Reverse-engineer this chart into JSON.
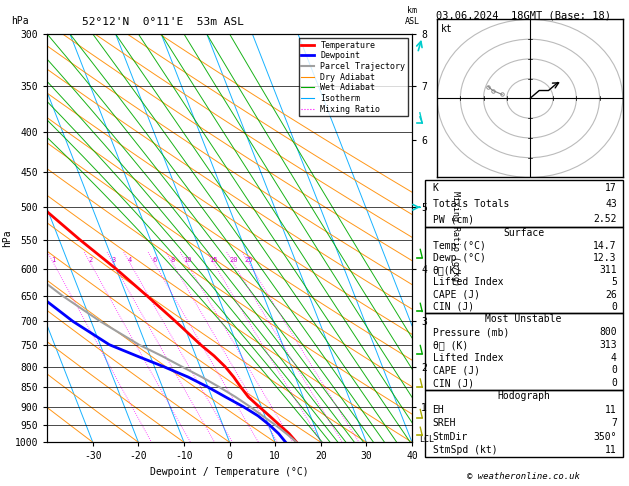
{
  "title_left": "52°12'N  0°11'E  53m ASL",
  "title_right": "03.06.2024  18GMT (Base: 18)",
  "xlabel": "Dewpoint / Temperature (°C)",
  "pressure_ticks": [
    300,
    350,
    400,
    450,
    500,
    550,
    600,
    650,
    700,
    750,
    800,
    850,
    900,
    950,
    1000
  ],
  "x_ticks": [
    -30,
    -20,
    -10,
    0,
    10,
    20,
    30,
    40
  ],
  "x_min": -40,
  "x_max": 40,
  "km_ticks": [
    8,
    7,
    6,
    5,
    4,
    3,
    2,
    1
  ],
  "km_pressures": [
    300,
    350,
    410,
    500,
    600,
    700,
    800,
    900
  ],
  "lcl_pressure": 993,
  "mixing_ratio_values": [
    1,
    2,
    3,
    4,
    6,
    8,
    10,
    15,
    20,
    25
  ],
  "mixing_ratio_p_cutoff": 570,
  "sounding_temp_p": [
    1000,
    975,
    950,
    925,
    900,
    875,
    850,
    825,
    800,
    775,
    750,
    700,
    650,
    600,
    550,
    500,
    450,
    400,
    350,
    300
  ],
  "sounding_temp_t": [
    14.7,
    13.8,
    12.4,
    11.0,
    9.5,
    8.0,
    7.2,
    6.5,
    5.5,
    4.0,
    2.0,
    -1.5,
    -5.5,
    -10.0,
    -15.5,
    -21.0,
    -27.0,
    -33.5,
    -40.5,
    -48.0
  ],
  "sounding_dewp_p": [
    1000,
    975,
    950,
    925,
    900,
    875,
    850,
    825,
    800,
    775,
    750,
    700,
    650,
    600,
    550,
    500,
    450,
    400,
    350,
    300
  ],
  "sounding_dewp_t": [
    12.3,
    11.5,
    10.2,
    8.5,
    6.0,
    3.0,
    0.0,
    -3.5,
    -8.0,
    -13.0,
    -18.0,
    -24.0,
    -29.0,
    -32.0,
    -37.0,
    -41.0,
    -45.0,
    -51.0,
    -57.0,
    -63.0
  ],
  "parcel_traj_p": [
    1000,
    975,
    950,
    925,
    900,
    875,
    850,
    825,
    800,
    775,
    750,
    700,
    650,
    600,
    550,
    500,
    450,
    400,
    350,
    300
  ],
  "parcel_traj_t": [
    14.7,
    13.2,
    11.5,
    9.5,
    7.5,
    5.2,
    2.5,
    -0.5,
    -4.0,
    -7.5,
    -11.5,
    -18.0,
    -24.0,
    -29.5,
    -34.5,
    -39.0,
    -43.5,
    -47.5,
    -51.5,
    -55.5
  ],
  "colors": {
    "isotherm": "#00aaff",
    "dry_adiabat": "#ff8c00",
    "wet_adiabat": "#00aa00",
    "mixing_ratio": "#ff00ff",
    "temp": "#ff0000",
    "dewp": "#0000ff",
    "parcel": "#a0a0a0",
    "isobar": "#000000",
    "wind_cyan": "#00cccc",
    "wind_green": "#00cc00",
    "wind_yellow": "#aaaa00"
  },
  "legend_items": [
    {
      "label": "Temperature",
      "color": "#ff0000",
      "style": "solid",
      "lw": 2.0
    },
    {
      "label": "Dewpoint",
      "color": "#0000ff",
      "style": "solid",
      "lw": 2.0
    },
    {
      "label": "Parcel Trajectory",
      "color": "#a0a0a0",
      "style": "solid",
      "lw": 1.5
    },
    {
      "label": "Dry Adiabat",
      "color": "#ff8c00",
      "style": "solid",
      "lw": 0.8
    },
    {
      "label": "Wet Adiabat",
      "color": "#00aa00",
      "style": "solid",
      "lw": 0.8
    },
    {
      "label": "Isotherm",
      "color": "#00aaff",
      "style": "solid",
      "lw": 0.8
    },
    {
      "label": "Mixing Ratio",
      "color": "#ff00ff",
      "style": "dotted",
      "lw": 0.8
    }
  ],
  "stats": {
    "K": 17,
    "Totals_Totals": 43,
    "PW_cm": "2.52",
    "Surface_Temp": "14.7",
    "Surface_Dewp": "12.3",
    "Surface_theta_e": 311,
    "Surface_LI": 5,
    "Surface_CAPE": 26,
    "Surface_CIN": 0,
    "MU_Pressure": 800,
    "MU_theta_e": 313,
    "MU_LI": 4,
    "MU_CAPE": 0,
    "MU_CIN": 0,
    "EH": 11,
    "SREH": 7,
    "StmDir": "350°",
    "StmSpd_kt": 11
  },
  "wind_barb_data": [
    {
      "p": 310,
      "color": "#00cccc",
      "type": "flag"
    },
    {
      "p": 390,
      "color": "#00cccc",
      "type": "barb2"
    },
    {
      "p": 500,
      "color": "#00cccc",
      "type": "arrow"
    },
    {
      "p": 580,
      "color": "#00aa00",
      "type": "barb1"
    },
    {
      "p": 680,
      "color": "#00aa00",
      "type": "barb1"
    },
    {
      "p": 770,
      "color": "#00aa00",
      "type": "barb1"
    },
    {
      "p": 850,
      "color": "#aaaa00",
      "type": "barb1"
    },
    {
      "p": 930,
      "color": "#aaaa00",
      "type": "barb1"
    },
    {
      "p": 980,
      "color": "#aaaa00",
      "type": "barb1"
    }
  ]
}
